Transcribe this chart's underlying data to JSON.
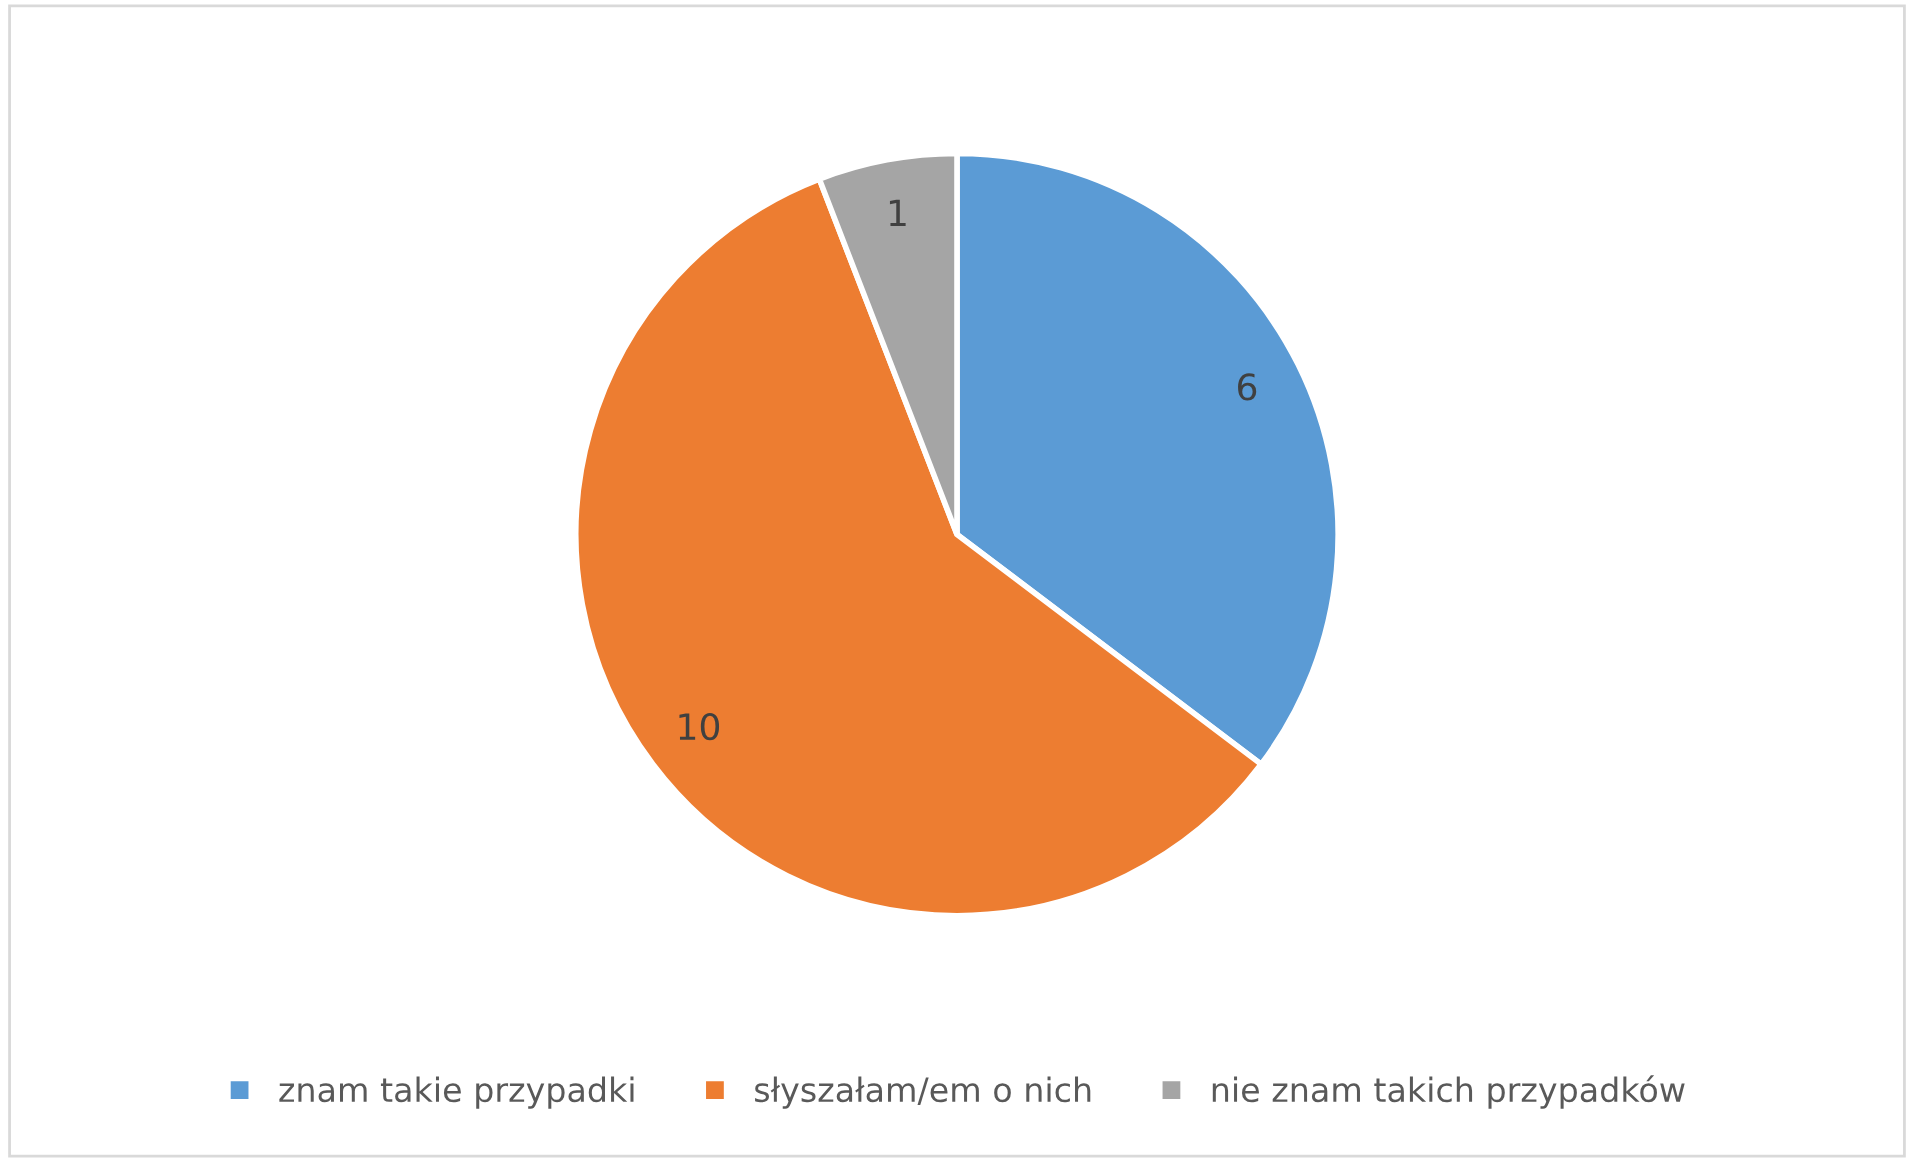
{
  "chart_data": {
    "type": "pie",
    "categories": [
      "znam takie przypadki",
      "słyszałam/em o nich",
      "nie znam takich przypadków"
    ],
    "values": [
      6,
      10,
      1
    ],
    "colors": [
      "#5b9bd5",
      "#ed7d31",
      "#a5a5a5"
    ],
    "data_labels": true,
    "legend": "bottom"
  }
}
